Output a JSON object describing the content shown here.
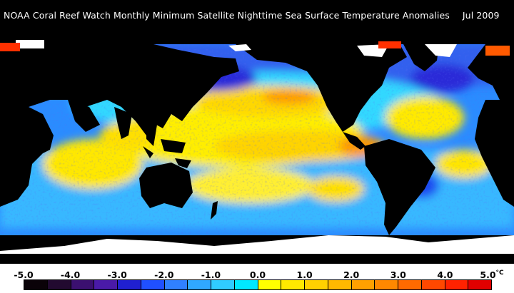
{
  "map": {
    "title": "NOAA Coral Reef Watch Monthly Minimum Satellite Nighttime Sea Surface Temperature Anomalies",
    "date": "Jul 2009",
    "land_color": "#000000",
    "ice_color": "#ffffff"
  },
  "legend": {
    "unit": "°C",
    "ticks": [
      "-5.0",
      "-4.0",
      "-3.0",
      "-2.0",
      "-1.0",
      "0.0",
      "1.0",
      "2.0",
      "3.0",
      "4.0",
      "5.0"
    ],
    "colors": [
      "#0a0208",
      "#220a30",
      "#3b1070",
      "#4a1aa8",
      "#2020d0",
      "#2050ff",
      "#3080ff",
      "#30a8ff",
      "#30ccff",
      "#00e8ff",
      "#ffff00",
      "#ffe800",
      "#ffd000",
      "#ffb800",
      "#ffa000",
      "#ff8800",
      "#ff6a00",
      "#ff4800",
      "#ff2200",
      "#e00000"
    ]
  }
}
